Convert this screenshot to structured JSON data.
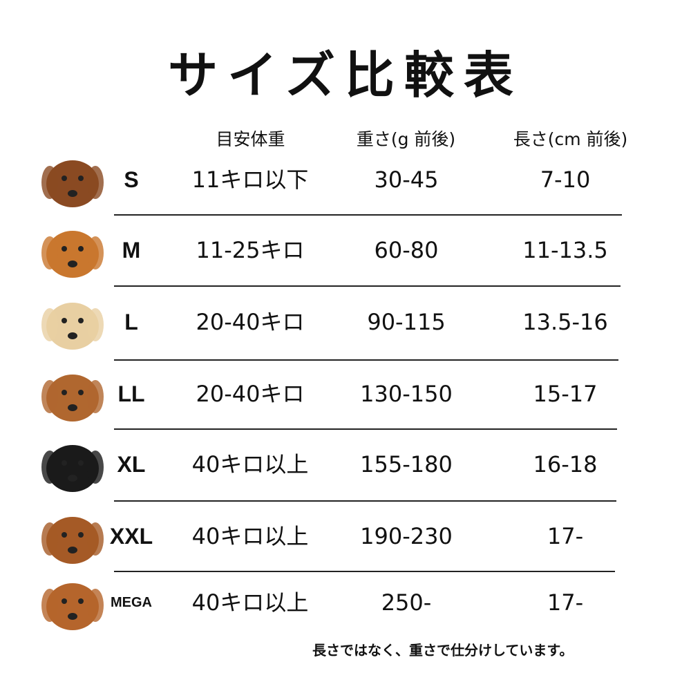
{
  "title": "サイズ比較表",
  "headers": {
    "weight_guide": "目安体重",
    "grams": "重さ(g 前後)",
    "length": "長さ(cm 前後)"
  },
  "rows": [
    {
      "size": "S",
      "weight_guide": "11キロ以下",
      "grams": "30-45",
      "length": "7-10",
      "dog_color": "#8a4a22"
    },
    {
      "size": "M",
      "weight_guide": "11-25キロ",
      "grams": "60-80",
      "length": "11-13.5",
      "dog_color": "#c9772e"
    },
    {
      "size": "L",
      "weight_guide": "20-40キロ",
      "grams": "90-115",
      "length": "13.5-16",
      "dog_color": "#e8cfa2"
    },
    {
      "size": "LL",
      "weight_guide": "20-40キロ",
      "grams": "130-150",
      "length": "15-17",
      "dog_color": "#b0672f"
    },
    {
      "size": "XL",
      "weight_guide": "40キロ以上",
      "grams": "155-180",
      "length": "16-18",
      "dog_color": "#1a1a1a"
    },
    {
      "size": "XXL",
      "weight_guide": "40キロ以上",
      "grams": "190-230",
      "length": "17-",
      "dog_color": "#a55a26"
    },
    {
      "size": "MEGA",
      "weight_guide": "40キロ以上",
      "grams": "250-",
      "length": "17-",
      "dog_color": "#b5652c"
    }
  ],
  "note": "長さではなく、重さで仕分けしています。"
}
